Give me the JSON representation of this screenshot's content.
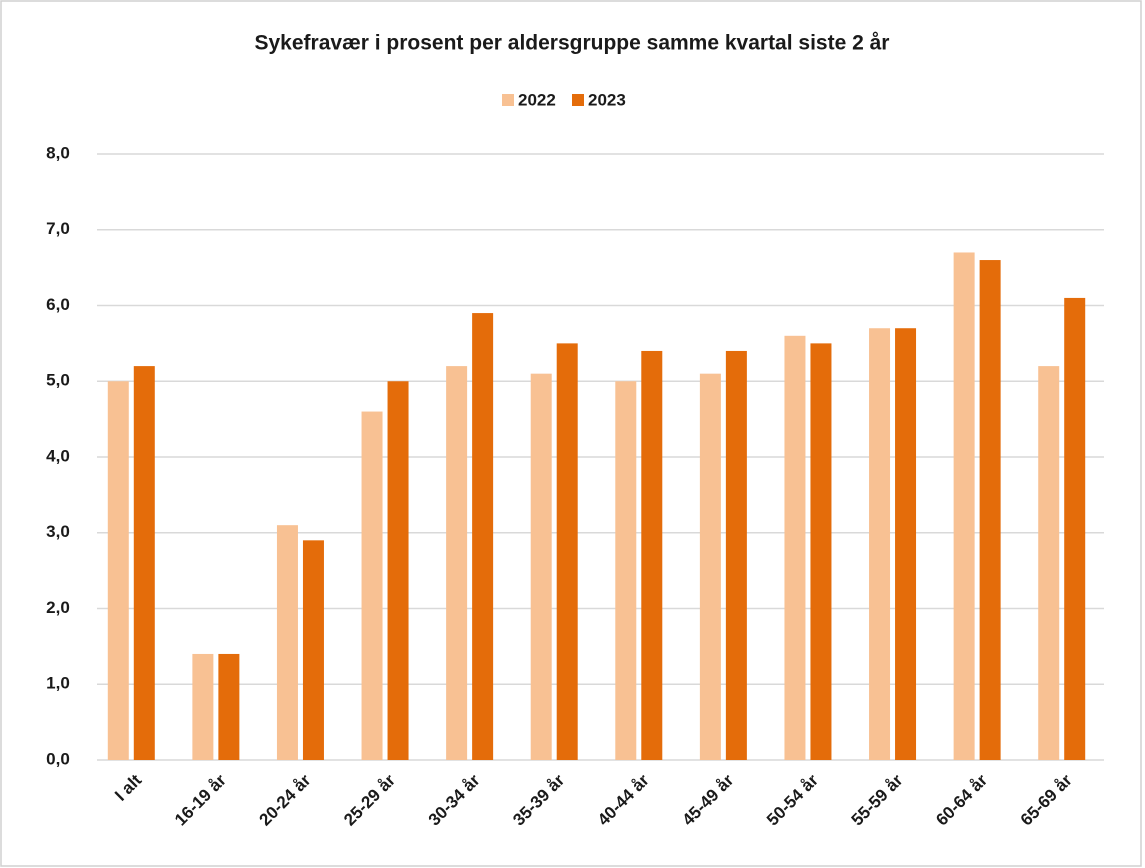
{
  "chart_data": {
    "type": "bar",
    "title": "Sykefravær i prosent per aldersgruppe samme kvartal siste 2 år",
    "categories": [
      "I alt",
      "16-19 år",
      "20-24 år",
      "25-29 år",
      "30-34 år",
      "35-39 år",
      "40-44 år",
      "45-49 år",
      "50-54 år",
      "55-59 år",
      "60-64 år",
      "65-69 år"
    ],
    "series": [
      {
        "name": "2022",
        "color": "#f8c193",
        "values": [
          5.0,
          1.4,
          3.1,
          4.6,
          5.2,
          5.1,
          5.0,
          5.1,
          5.6,
          5.7,
          6.7,
          5.2
        ]
      },
      {
        "name": "2023",
        "color": "#e46c0a",
        "values": [
          5.2,
          1.4,
          2.9,
          5.0,
          5.9,
          5.5,
          5.4,
          5.4,
          5.5,
          5.7,
          6.6,
          6.1
        ]
      }
    ],
    "ylim": [
      0,
      8
    ],
    "yticks": [
      {
        "value": 0,
        "label": "0,0"
      },
      {
        "value": 1,
        "label": "1,0"
      },
      {
        "value": 2,
        "label": "2,0"
      },
      {
        "value": 3,
        "label": "3,0"
      },
      {
        "value": 4,
        "label": "4,0"
      },
      {
        "value": 5,
        "label": "5,0"
      },
      {
        "value": 6,
        "label": "6,0"
      },
      {
        "value": 7,
        "label": "7,0"
      },
      {
        "value": 8,
        "label": "8,0"
      }
    ],
    "grid": true,
    "legend": "top"
  }
}
